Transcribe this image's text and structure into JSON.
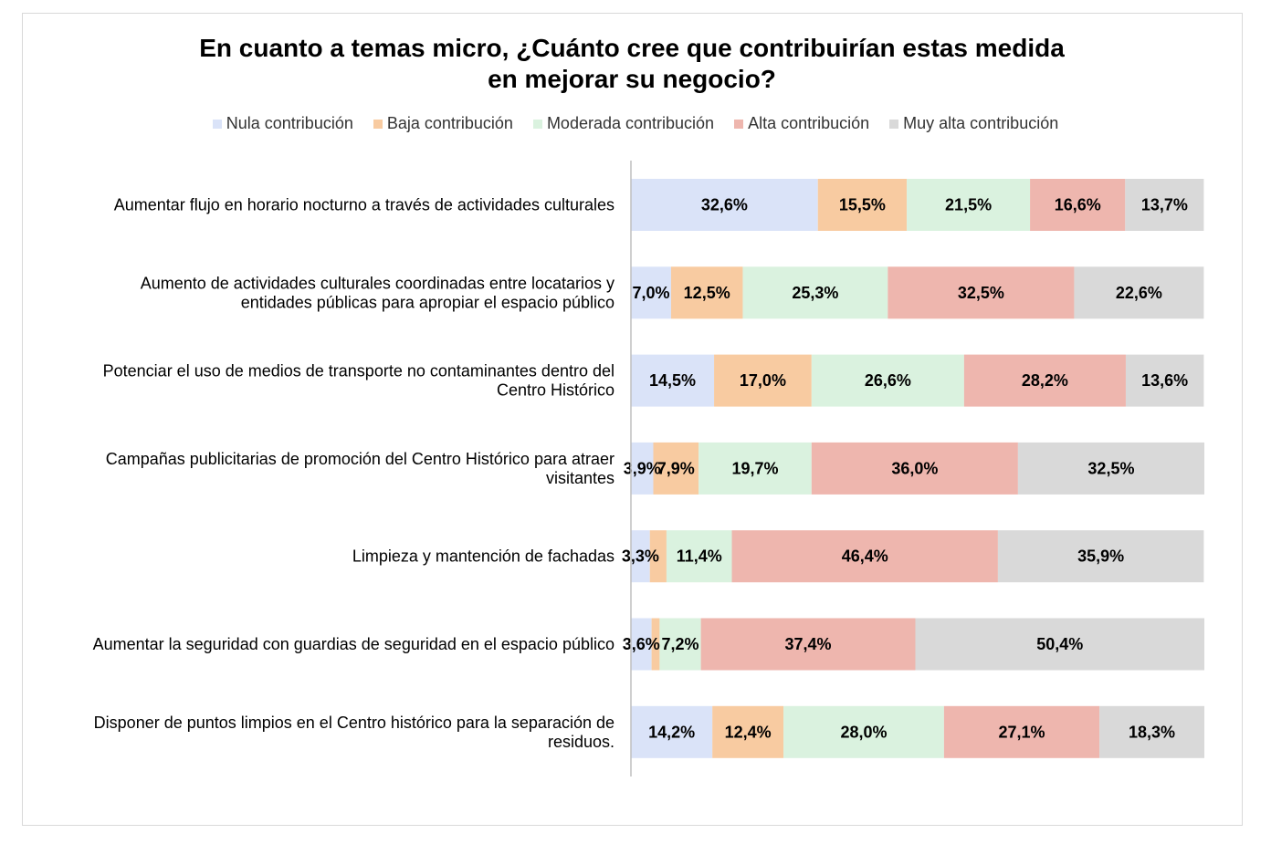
{
  "chart_data": {
    "type": "bar",
    "orientation": "horizontal",
    "stacked": true,
    "title": [
      "En cuanto a temas micro, ¿Cuánto cree que contribuirían estas medida",
      "en mejorar su negocio?"
    ],
    "legend_position": "top",
    "grid": false,
    "xlim": [
      0,
      100
    ],
    "categories": [
      [
        "Aumentar flujo en horario nocturno a través de actividades culturales"
      ],
      [
        "Aumento de actividades culturales coordinadas entre locatarios y",
        "entidades públicas para apropiar el espacio público"
      ],
      [
        "Potenciar el uso de medios de transporte no contaminantes dentro del",
        "Centro Histórico"
      ],
      [
        "Campañas publicitarias de promoción del Centro Histórico para atraer",
        "visitantes"
      ],
      [
        "Limpieza y mantención de fachadas"
      ],
      [
        "Aumentar la seguridad con guardias de seguridad en el espacio público"
      ],
      [
        "Disponer de puntos limpios en el Centro histórico para la separación de",
        "residuos."
      ]
    ],
    "series": [
      {
        "name": "Nula contribución",
        "color": "#dae3f8",
        "values": [
          32.6,
          7.0,
          14.5,
          3.9,
          3.3,
          3.6,
          14.2
        ],
        "labels": [
          "32,6%",
          "7,0%",
          "14,5%",
          "3,9%",
          "3,3%",
          "3,6%",
          "14,2%"
        ]
      },
      {
        "name": "Baja contribución",
        "color": "#f8cba1",
        "values": [
          15.5,
          12.5,
          17.0,
          7.9,
          2.9,
          1.4,
          12.4
        ],
        "labels": [
          "15,5%",
          "12,5%",
          "17,0%",
          "7,9%",
          "",
          "",
          "12,4%"
        ]
      },
      {
        "name": "Moderada contribución",
        "color": "#daf2df",
        "values": [
          21.5,
          25.3,
          26.6,
          19.7,
          11.4,
          7.2,
          28.0
        ],
        "labels": [
          "21,5%",
          "25,3%",
          "26,6%",
          "19,7%",
          "11,4%",
          "7,2%",
          "28,0%"
        ]
      },
      {
        "name": "Alta contribución",
        "color": "#eeb6ae",
        "values": [
          16.6,
          32.5,
          28.2,
          36.0,
          46.4,
          37.4,
          27.1
        ],
        "labels": [
          "16,6%",
          "32,5%",
          "28,2%",
          "36,0%",
          "46,4%",
          "37,4%",
          "27,1%"
        ]
      },
      {
        "name": "Muy alta contribución",
        "color": "#d9d9d9",
        "values": [
          13.7,
          22.6,
          13.6,
          32.5,
          35.9,
          50.4,
          18.3
        ],
        "labels": [
          "13,7%",
          "22,6%",
          "13,6%",
          "32,5%",
          "35,9%",
          "50,4%",
          "18,3%"
        ]
      }
    ]
  }
}
